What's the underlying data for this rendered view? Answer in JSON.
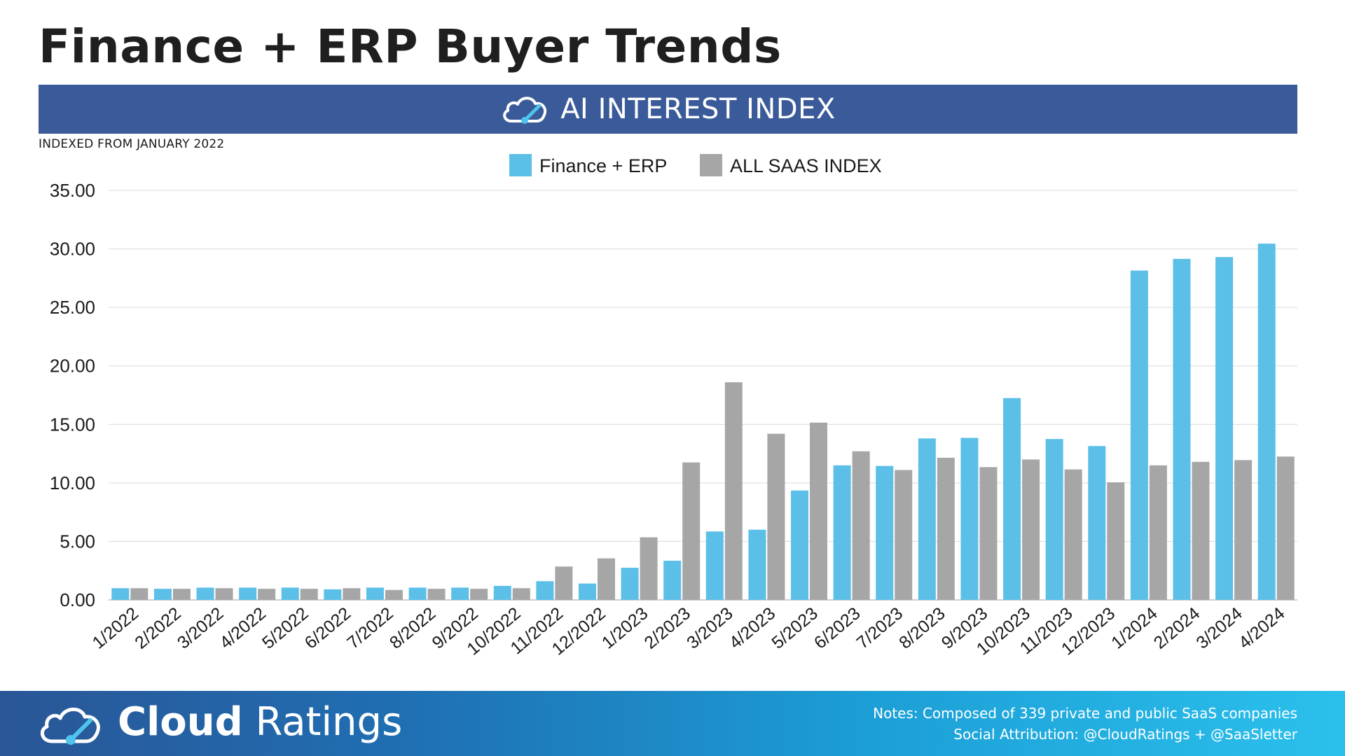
{
  "page": {
    "title": "Finance + ERP Buyer Trends",
    "banner_title": "AI INTEREST INDEX",
    "subtitle": "INDEXED FROM JANUARY 2022"
  },
  "footer": {
    "brand_bold": "Cloud",
    "brand_light": "Ratings",
    "notes_line1": "Notes: Composed of 339 private and public SaaS companies",
    "notes_line2": "Social Attribution: @CloudRatings + @SaaSletter"
  },
  "colors": {
    "banner": "#3a5a99",
    "series_finance": "#5bbfe8",
    "series_saas": "#a6a6a6",
    "grid": "#d9d9d9"
  },
  "chart_data": {
    "type": "bar",
    "title": "AI INTEREST INDEX",
    "subtitle": "INDEXED FROM JANUARY 2022",
    "xlabel": "",
    "ylabel": "",
    "ylim": [
      0,
      35
    ],
    "yticks": [
      "0.00",
      "5.00",
      "10.00",
      "15.00",
      "20.00",
      "25.00",
      "30.00",
      "35.00"
    ],
    "grid": true,
    "legend_position": "top-center",
    "categories": [
      "1/2022",
      "2/2022",
      "3/2022",
      "4/2022",
      "5/2022",
      "6/2022",
      "7/2022",
      "8/2022",
      "9/2022",
      "10/2022",
      "11/2022",
      "12/2022",
      "1/2023",
      "2/2023",
      "3/2023",
      "4/2023",
      "5/2023",
      "6/2023",
      "7/2023",
      "8/2023",
      "9/2023",
      "10/2023",
      "11/2023",
      "12/2023",
      "1/2024",
      "2/2024",
      "3/2024",
      "4/2024"
    ],
    "series": [
      {
        "name": "Finance + ERP",
        "color": "#5bbfe8",
        "values": [
          1.0,
          0.95,
          1.05,
          1.05,
          1.05,
          0.9,
          1.05,
          1.05,
          1.05,
          1.2,
          1.6,
          1.4,
          2.75,
          3.35,
          5.85,
          6.0,
          9.35,
          11.5,
          11.45,
          13.8,
          13.85,
          17.25,
          13.75,
          13.15,
          28.15,
          29.15,
          29.3,
          30.45
        ]
      },
      {
        "name": "ALL SAAS INDEX",
        "color": "#a6a6a6",
        "values": [
          1.0,
          0.95,
          1.0,
          0.95,
          0.95,
          1.0,
          0.85,
          0.95,
          0.95,
          1.0,
          2.85,
          3.55,
          5.35,
          11.75,
          18.6,
          14.2,
          15.15,
          12.7,
          11.1,
          12.15,
          11.35,
          12.0,
          11.15,
          10.05,
          11.5,
          11.8,
          11.95,
          12.25
        ]
      }
    ]
  }
}
